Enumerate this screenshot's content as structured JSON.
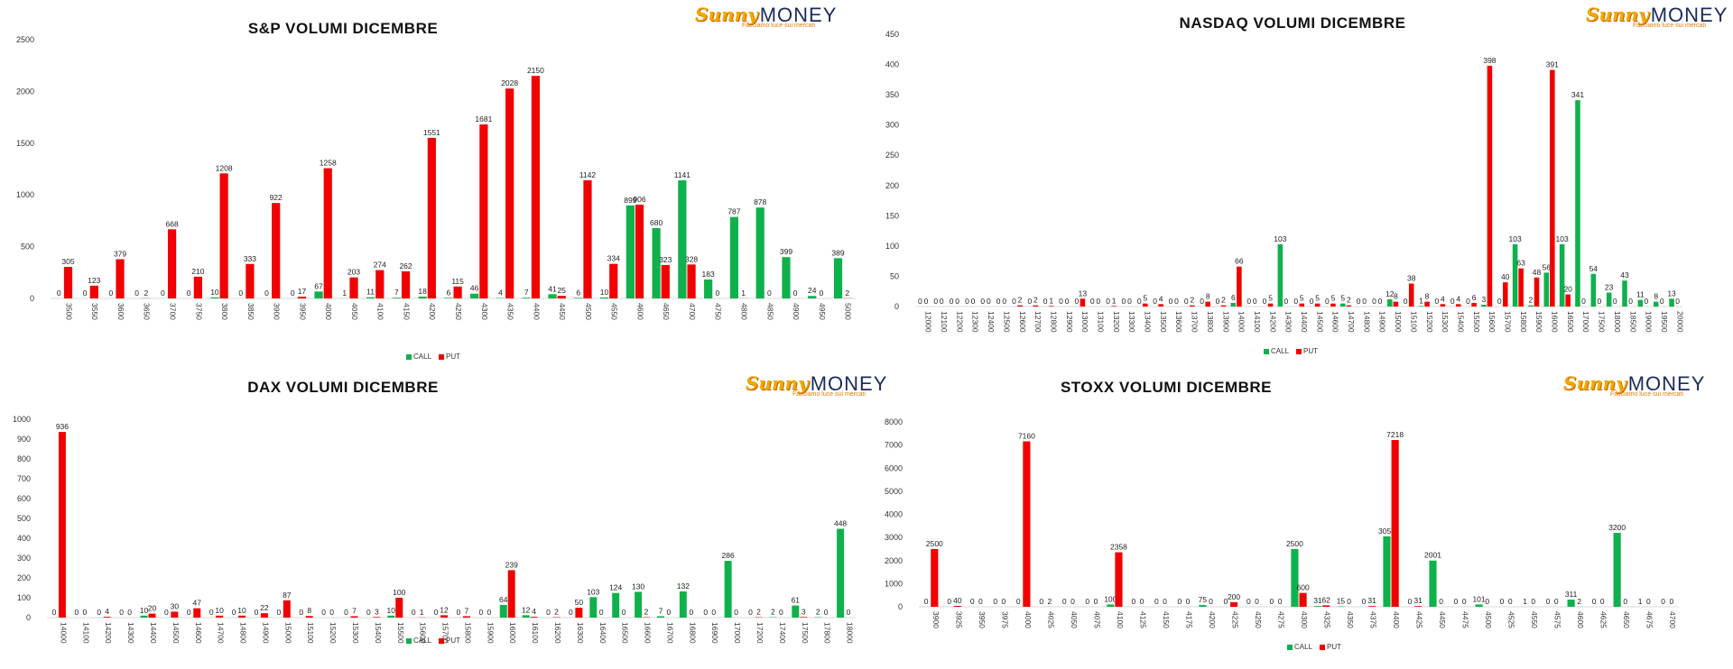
{
  "brand": {
    "word1": "Sunny",
    "word2": "MONEY",
    "tagline": "Facciamo luce sui mercati"
  },
  "colors": {
    "call": "#0fb14c",
    "put": "#f20000",
    "axis": "#d9d9d9",
    "text": "#333333"
  },
  "chart_data": [
    {
      "type": "bar",
      "title": "S&P VOLUMI DICEMBRE",
      "ylim": [
        0,
        2500
      ],
      "yticks": [
        0,
        500,
        1000,
        1500,
        2000,
        2500
      ],
      "legend": "bottom",
      "categories": [
        "3500",
        "3550",
        "3600",
        "3650",
        "3700",
        "3750",
        "3800",
        "3850",
        "3900",
        "3950",
        "4000",
        "4050",
        "4100",
        "4150",
        "4200",
        "4250",
        "4300",
        "4350",
        "4400",
        "4450",
        "4500",
        "4550",
        "4600",
        "4650",
        "4700",
        "4750",
        "4800",
        "4850",
        "4900",
        "4950",
        "5000"
      ],
      "series": [
        {
          "name": "CALL",
          "values": [
            0,
            0,
            0,
            0,
            0,
            0,
            10,
            0,
            0,
            0,
            67,
            1,
            11,
            7,
            18,
            6,
            46,
            4,
            7,
            41,
            6,
            10,
            899,
            680,
            1141,
            183,
            787,
            878,
            399,
            24,
            389
          ]
        },
        {
          "name": "PUT",
          "values": [
            305,
            123,
            379,
            2,
            668,
            210,
            1208,
            333,
            922,
            17,
            1258,
            203,
            274,
            262,
            1551,
            115,
            1681,
            2028,
            2150,
            25,
            1142,
            334,
            906,
            323,
            328,
            0,
            1,
            0,
            0,
            0,
            2
          ]
        }
      ]
    },
    {
      "type": "bar",
      "title": "NASDAQ VOLUMI DICEMBRE",
      "ylim": [
        0,
        450
      ],
      "yticks": [
        0,
        50,
        100,
        150,
        200,
        250,
        300,
        350,
        400,
        450
      ],
      "legend": "bottom",
      "categories": [
        "12000",
        "12100",
        "12200",
        "12300",
        "12400",
        "12500",
        "12600",
        "12700",
        "12800",
        "12900",
        "13000",
        "13100",
        "13200",
        "13300",
        "13400",
        "13500",
        "13600",
        "13700",
        "13800",
        "13900",
        "14000",
        "14100",
        "14200",
        "14300",
        "14400",
        "14500",
        "14600",
        "14700",
        "14800",
        "14900",
        "15000",
        "15100",
        "15200",
        "15300",
        "15400",
        "15500",
        "15600",
        "15700",
        "15800",
        "15900",
        "16000",
        "16500",
        "17000",
        "17500",
        "18000",
        "18500",
        "19000",
        "19500",
        "20000"
      ],
      "series": [
        {
          "name": "CALL",
          "values": [
            0,
            0,
            0,
            0,
            0,
            0,
            0,
            0,
            0,
            0,
            0,
            0,
            0,
            0,
            0,
            0,
            0,
            0,
            0,
            0,
            6,
            0,
            0,
            103,
            0,
            0,
            0,
            5,
            0,
            0,
            12,
            0,
            1,
            0,
            0,
            0,
            3,
            0,
            103,
            2,
            56,
            103,
            341,
            54,
            23,
            43,
            11,
            8,
            13
          ]
        },
        {
          "name": "PUT",
          "values": [
            0,
            0,
            0,
            0,
            0,
            0,
            2,
            2,
            1,
            0,
            13,
            0,
            1,
            0,
            5,
            4,
            0,
            2,
            8,
            2,
            66,
            0,
            5,
            0,
            5,
            5,
            5,
            2,
            0,
            0,
            8,
            38,
            8,
            4,
            4,
            6,
            398,
            40,
            63,
            48,
            391,
            20,
            0,
            0,
            0,
            0,
            0,
            0,
            0
          ]
        }
      ]
    },
    {
      "type": "bar",
      "title": "DAX VOLUMI DICEMBRE",
      "ylim": [
        0,
        1000
      ],
      "yticks": [
        0,
        100,
        200,
        300,
        400,
        500,
        600,
        700,
        800,
        900,
        1000
      ],
      "legend": "bottom",
      "categories": [
        "14000",
        "14100",
        "14200",
        "14300",
        "14400",
        "14500",
        "14600",
        "14700",
        "14800",
        "14900",
        "15000",
        "15100",
        "15200",
        "15300",
        "15400",
        "15500",
        "15600",
        "15700",
        "15800",
        "15900",
        "16000",
        "16100",
        "16200",
        "16300",
        "16400",
        "16500",
        "16600",
        "16700",
        "16800",
        "16900",
        "17000",
        "17200",
        "17400",
        "17500",
        "17800",
        "18000"
      ],
      "series": [
        {
          "name": "CALL",
          "values": [
            0,
            0,
            0,
            0,
            10,
            0,
            0,
            0,
            0,
            0,
            0,
            0,
            0,
            0,
            0,
            10,
            0,
            0,
            0,
            0,
            64,
            12,
            0,
            0,
            103,
            124,
            130,
            7,
            132,
            0,
            286,
            0,
            2,
            61,
            2,
            448
          ]
        },
        {
          "name": "PUT",
          "values": [
            936,
            0,
            4,
            0,
            20,
            30,
            47,
            10,
            10,
            22,
            87,
            8,
            0,
            7,
            3,
            100,
            1,
            12,
            7,
            0,
            239,
            4,
            2,
            50,
            0,
            0,
            2,
            0,
            0,
            0,
            0,
            2,
            0,
            3,
            0,
            0
          ]
        }
      ]
    },
    {
      "type": "bar",
      "title": "STOXX VOLUMI DICEMBRE",
      "ylim": [
        0,
        8000
      ],
      "yticks": [
        0,
        1000,
        2000,
        3000,
        4000,
        5000,
        6000,
        7000,
        8000
      ],
      "legend": "bottom",
      "categories": [
        "3900",
        "3925",
        "3950",
        "3975",
        "4000",
        "4025",
        "4050",
        "4075",
        "4100",
        "4125",
        "4150",
        "4175",
        "4200",
        "4225",
        "4250",
        "4275",
        "4300",
        "4325",
        "4350",
        "4375",
        "4400",
        "4425",
        "4450",
        "4475",
        "4500",
        "4525",
        "4550",
        "4575",
        "4600",
        "4625",
        "4650",
        "4675",
        "4700"
      ],
      "series": [
        {
          "name": "CALL",
          "values": [
            0,
            0,
            0,
            0,
            0,
            0,
            0,
            0,
            100,
            0,
            0,
            0,
            75,
            0,
            0,
            0,
            2500,
            31,
            15,
            0,
            3050,
            0,
            2001,
            0,
            101,
            0,
            1,
            0,
            311,
            0,
            3200,
            1,
            0
          ]
        },
        {
          "name": "PUT",
          "values": [
            2500,
            40,
            0,
            0,
            7160,
            2,
            0,
            0,
            2358,
            0,
            0,
            0,
            0,
            200,
            0,
            0,
            600,
            62,
            0,
            31,
            7218,
            31,
            0,
            0,
            0,
            0,
            0,
            0,
            2,
            0,
            0,
            0,
            0
          ]
        }
      ]
    }
  ]
}
